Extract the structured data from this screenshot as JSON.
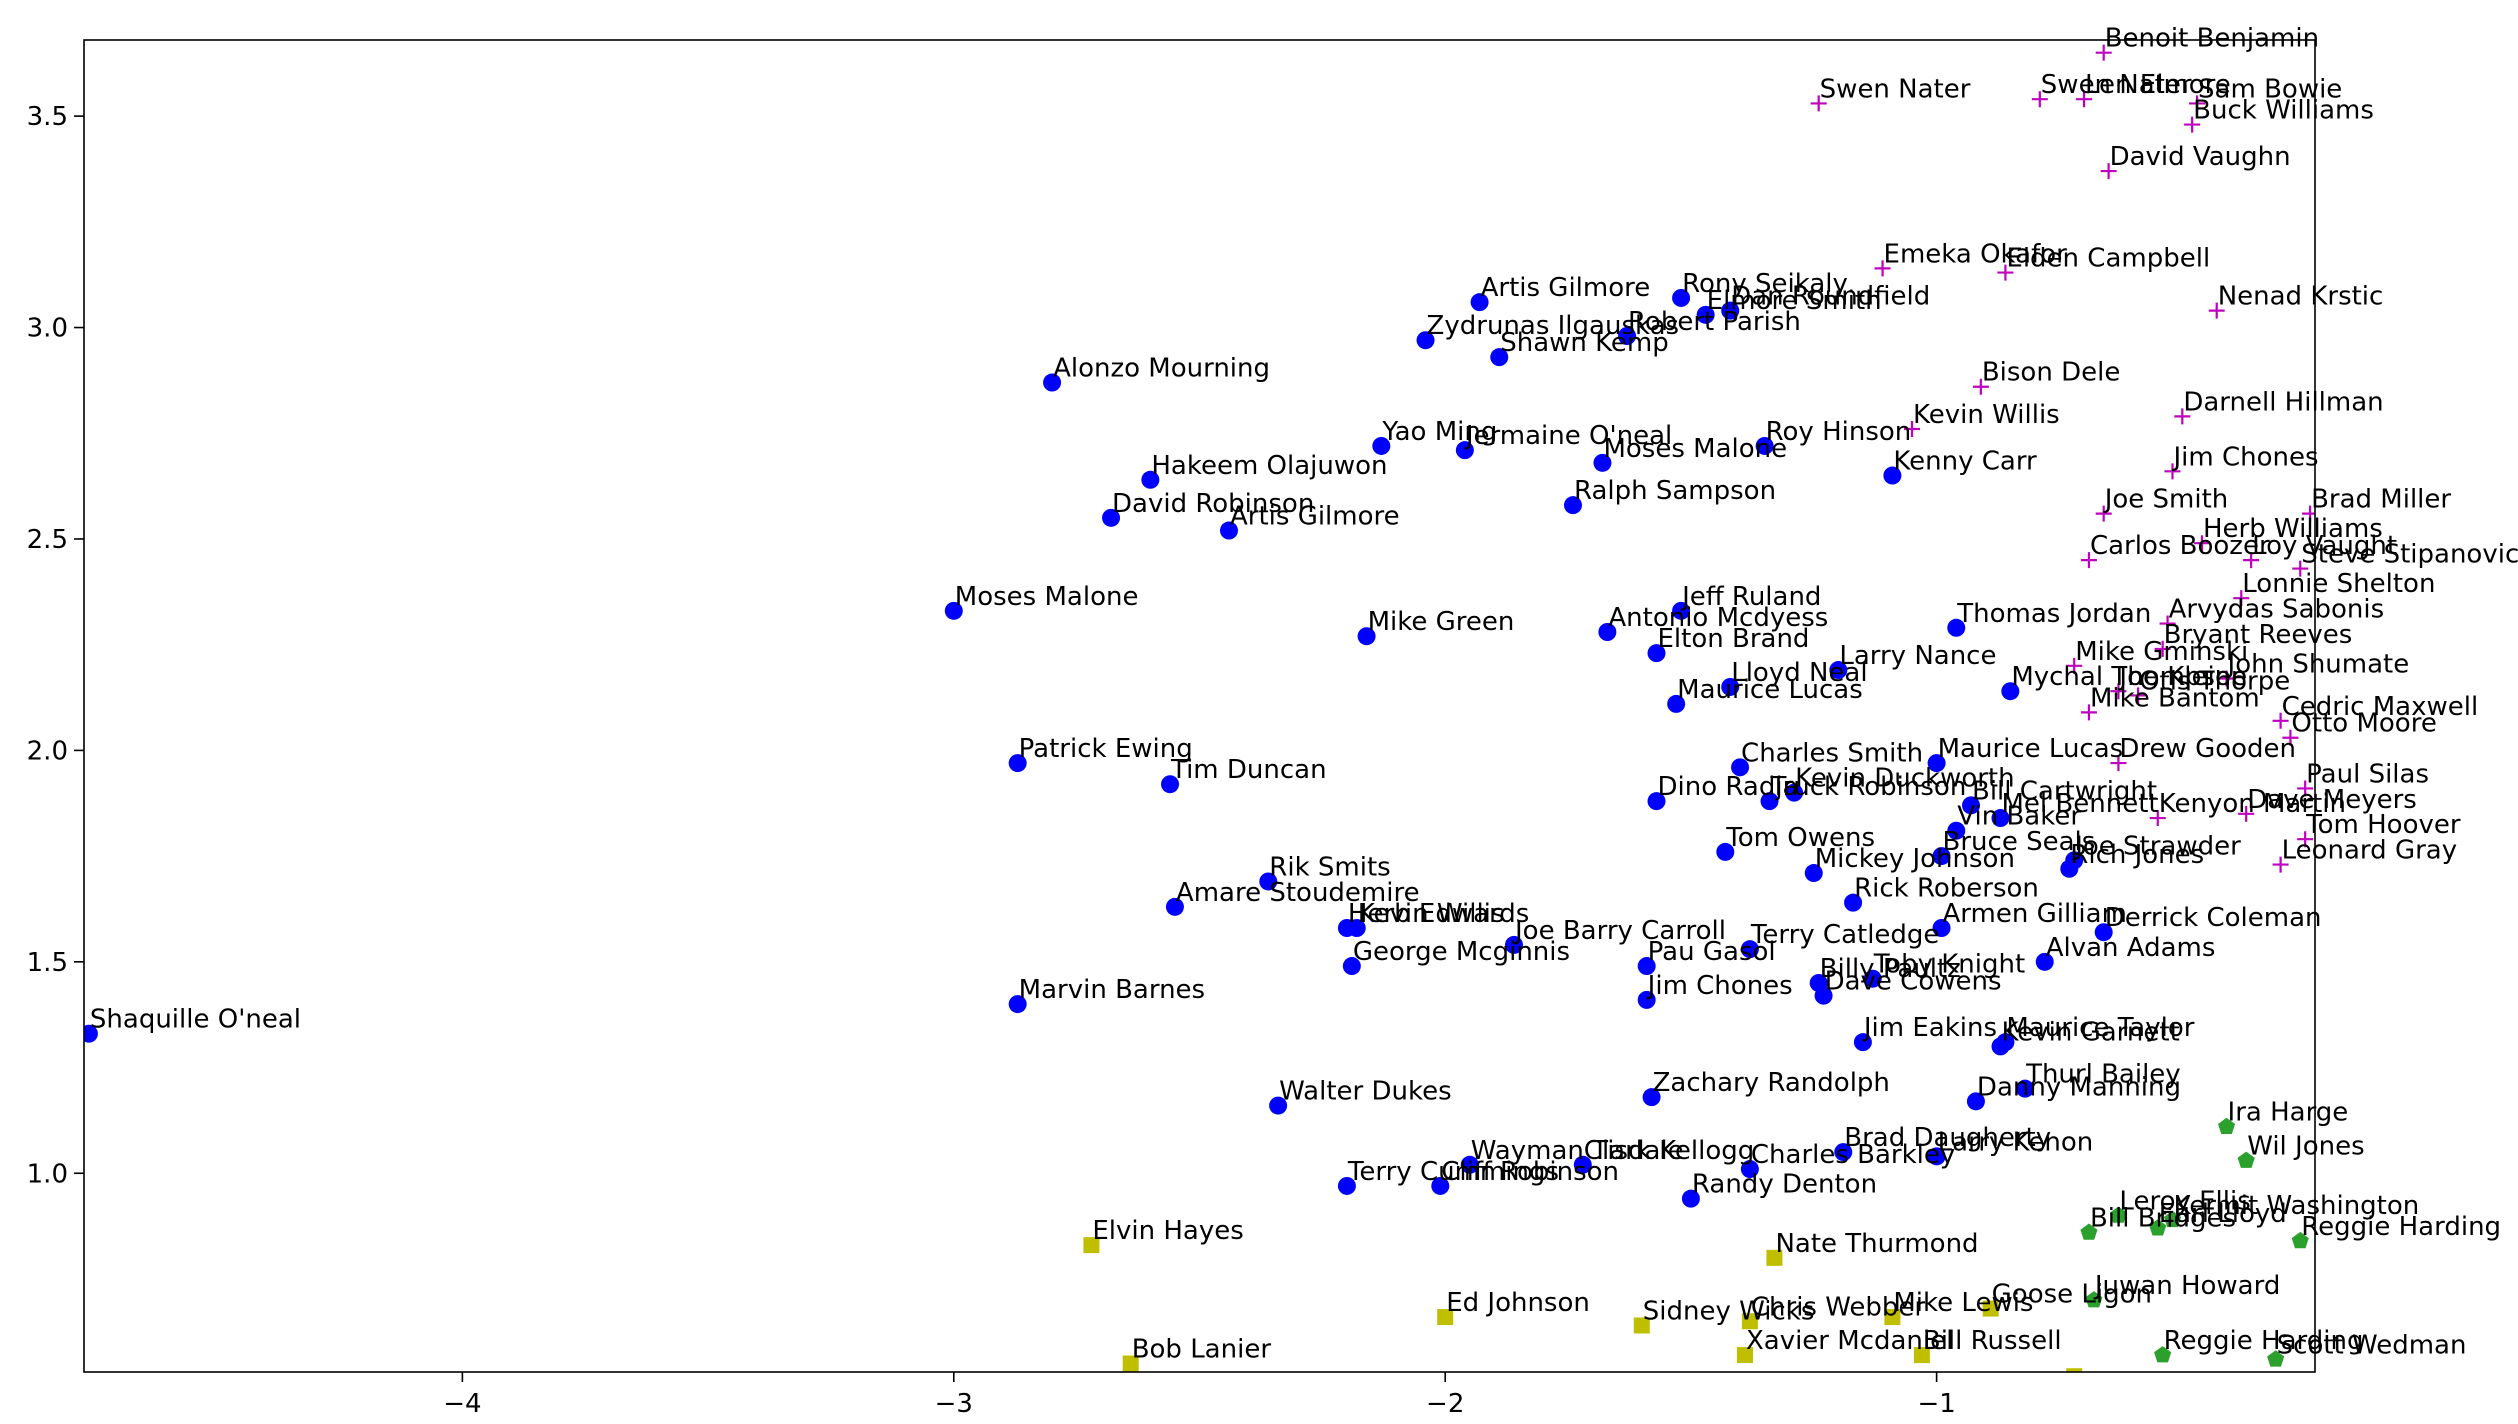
{
  "chart_data": {
    "type": "scatter",
    "title": "",
    "xlabel": "",
    "ylabel": "",
    "xlim": [
      -4.77,
      -0.23
    ],
    "ylim": [
      0.53,
      3.68
    ],
    "x_ticks": [
      {
        "value": -4,
        "label": "−4"
      },
      {
        "value": -3,
        "label": "−3"
      },
      {
        "value": -2,
        "label": "−2"
      },
      {
        "value": -1,
        "label": "−1"
      }
    ],
    "y_ticks": [
      {
        "value": 1.0,
        "label": "1.0"
      },
      {
        "value": 1.5,
        "label": "1.5"
      },
      {
        "value": 2.0,
        "label": "2.0"
      },
      {
        "value": 2.5,
        "label": "2.5"
      },
      {
        "value": 3.0,
        "label": "3.0"
      },
      {
        "value": 3.5,
        "label": "3.5"
      }
    ],
    "grid": false,
    "legend": "none",
    "series": [
      {
        "marker": "circle",
        "color": "#0000ff",
        "points": [
          {
            "x": -4.76,
            "y": 1.33,
            "label": "Shaquille O'neal"
          },
          {
            "x": -3.0,
            "y": 2.33,
            "label": "Moses Malone"
          },
          {
            "x": -2.8,
            "y": 2.87,
            "label": "Alonzo Mourning"
          },
          {
            "x": -2.87,
            "y": 1.97,
            "label": "Patrick Ewing"
          },
          {
            "x": -2.87,
            "y": 1.4,
            "label": "Marvin Barnes"
          },
          {
            "x": -2.68,
            "y": 2.55,
            "label": "David Robinson"
          },
          {
            "x": -2.6,
            "y": 2.64,
            "label": "Hakeem Olajuwon"
          },
          {
            "x": -2.44,
            "y": 2.52,
            "label": "Artis Gilmore"
          },
          {
            "x": -2.56,
            "y": 1.92,
            "label": "Tim Duncan"
          },
          {
            "x": -2.55,
            "y": 1.63,
            "label": "Amare Stoudemire"
          },
          {
            "x": -2.36,
            "y": 1.69,
            "label": "Rik Smits"
          },
          {
            "x": -2.34,
            "y": 1.16,
            "label": "Walter Dukes"
          },
          {
            "x": -2.16,
            "y": 2.27,
            "label": "Mike Green"
          },
          {
            "x": -2.13,
            "y": 2.72,
            "label": "Yao Ming"
          },
          {
            "x": -2.2,
            "y": 1.58,
            "label": "Herb Edwards"
          },
          {
            "x": -2.18,
            "y": 1.58,
            "label": "Kevin Willis"
          },
          {
            "x": -2.19,
            "y": 1.49,
            "label": "George Mcginnis"
          },
          {
            "x": -2.2,
            "y": 0.97,
            "label": "Terry Cummings"
          },
          {
            "x": -2.04,
            "y": 2.97,
            "label": "Zydrunas Ilgauskas"
          },
          {
            "x": -1.96,
            "y": 2.71,
            "label": "Jermaine O'neal"
          },
          {
            "x": -1.93,
            "y": 3.06,
            "label": "Artis Gilmore"
          },
          {
            "x": -1.89,
            "y": 2.93,
            "label": "Shawn Kemp"
          },
          {
            "x": -1.86,
            "y": 1.54,
            "label": "Joe Barry Carroll"
          },
          {
            "x": -1.95,
            "y": 1.02,
            "label": "Wayman Tisdale"
          },
          {
            "x": -2.01,
            "y": 0.97,
            "label": "Cliff Robinson"
          },
          {
            "x": -1.74,
            "y": 2.58,
            "label": "Ralph Sampson"
          },
          {
            "x": -1.68,
            "y": 2.68,
            "label": "Moses Malone"
          },
          {
            "x": -1.67,
            "y": 2.28,
            "label": "Antonio Mcdyess"
          },
          {
            "x": -1.72,
            "y": 1.02,
            "label": "Clark Kellogg"
          },
          {
            "x": -1.63,
            "y": 2.98,
            "label": "Robert Parish"
          },
          {
            "x": -1.57,
            "y": 2.23,
            "label": "Elton Brand"
          },
          {
            "x": -1.57,
            "y": 1.88,
            "label": "Dino Radja"
          },
          {
            "x": -1.59,
            "y": 1.49,
            "label": "Pau Gasol"
          },
          {
            "x": -1.59,
            "y": 1.41,
            "label": "Jim Chones"
          },
          {
            "x": -1.58,
            "y": 1.18,
            "label": "Zachary Randolph"
          },
          {
            "x": -1.52,
            "y": 3.07,
            "label": "Rony Seikaly"
          },
          {
            "x": -1.47,
            "y": 3.03,
            "label": "Elmore Smith"
          },
          {
            "x": -1.42,
            "y": 3.04,
            "label": "Dan Roundfield"
          },
          {
            "x": -1.52,
            "y": 2.33,
            "label": "Jeff Ruland"
          },
          {
            "x": -1.53,
            "y": 2.11,
            "label": "Maurice Lucas"
          },
          {
            "x": -1.42,
            "y": 2.15,
            "label": "Lloyd Neal"
          },
          {
            "x": -1.4,
            "y": 1.96,
            "label": "Charles Smith"
          },
          {
            "x": -1.43,
            "y": 1.76,
            "label": "Tom Owens"
          },
          {
            "x": -1.38,
            "y": 1.53,
            "label": "Terry Catledge"
          },
          {
            "x": -1.38,
            "y": 1.01,
            "label": "Charles Barkley"
          },
          {
            "x": -1.5,
            "y": 0.94,
            "label": "Randy Denton"
          },
          {
            "x": -1.35,
            "y": 2.72,
            "label": "Roy Hinson"
          },
          {
            "x": -1.34,
            "y": 1.88,
            "label": "Truck Robinson"
          },
          {
            "x": -1.29,
            "y": 1.9,
            "label": "Kevin Duckworth"
          },
          {
            "x": -1.25,
            "y": 1.71,
            "label": "Mickey Johnson"
          },
          {
            "x": -1.24,
            "y": 1.45,
            "label": "Billy Paultz"
          },
          {
            "x": -1.23,
            "y": 1.42,
            "label": "Dave Cowens"
          },
          {
            "x": -1.2,
            "y": 2.19,
            "label": "Larry Nance"
          },
          {
            "x": -1.17,
            "y": 1.64,
            "label": "Rick Roberson"
          },
          {
            "x": -1.13,
            "y": 1.46,
            "label": "Toby Knight"
          },
          {
            "x": -1.15,
            "y": 1.31,
            "label": "Jim Eakins"
          },
          {
            "x": -1.19,
            "y": 1.05,
            "label": "Brad Daugherty"
          },
          {
            "x": -1.09,
            "y": 2.65,
            "label": "Kenny Carr"
          },
          {
            "x": -1.0,
            "y": 1.97,
            "label": "Maurice Lucas"
          },
          {
            "x": -0.99,
            "y": 1.75,
            "label": "Bruce Seals"
          },
          {
            "x": -0.99,
            "y": 1.58,
            "label": "Armen Gilliam"
          },
          {
            "x": -1.0,
            "y": 1.04,
            "label": "Larry Kenon"
          },
          {
            "x": -0.96,
            "y": 2.29,
            "label": "Thomas Jordan"
          },
          {
            "x": -0.96,
            "y": 1.81,
            "label": "Vin Baker"
          },
          {
            "x": -0.93,
            "y": 1.87,
            "label": "Bill Cartwright"
          },
          {
            "x": -0.87,
            "y": 1.84,
            "label": "Mel Bennett"
          },
          {
            "x": -0.92,
            "y": 1.17,
            "label": "Danny Manning"
          },
          {
            "x": -0.85,
            "y": 2.14,
            "label": "Mychal Thompson"
          },
          {
            "x": -0.87,
            "y": 1.3,
            "label": "Kevin Garnett"
          },
          {
            "x": -0.86,
            "y": 1.31,
            "label": "Maurice Taylor"
          },
          {
            "x": -0.82,
            "y": 1.2,
            "label": "Thurl Bailey"
          },
          {
            "x": -0.78,
            "y": 1.5,
            "label": "Alvan Adams"
          },
          {
            "x": -0.73,
            "y": 1.72,
            "label": "Rich Jones"
          },
          {
            "x": -0.72,
            "y": 1.74,
            "label": "Joe Strawder"
          },
          {
            "x": -0.66,
            "y": 1.57,
            "label": "Derrick Coleman"
          }
        ]
      },
      {
        "marker": "plus",
        "color": "#bf00bf",
        "points": [
          {
            "x": -1.24,
            "y": 3.53,
            "label": "Swen Nater"
          },
          {
            "x": -0.79,
            "y": 3.54,
            "label": "Swen Nater"
          },
          {
            "x": -0.7,
            "y": 3.54,
            "label": "Len Elmore"
          },
          {
            "x": -0.66,
            "y": 3.65,
            "label": "Benoit Benjamin"
          },
          {
            "x": -0.47,
            "y": 3.53,
            "label": "Sam Bowie"
          },
          {
            "x": -0.48,
            "y": 3.48,
            "label": "Buck Williams"
          },
          {
            "x": -0.65,
            "y": 3.37,
            "label": "David Vaughn"
          },
          {
            "x": -1.11,
            "y": 3.14,
            "label": "Emeka Okafor"
          },
          {
            "x": -0.86,
            "y": 3.13,
            "label": "Elden Campbell"
          },
          {
            "x": -0.43,
            "y": 3.04,
            "label": "Nenad Krstic"
          },
          {
            "x": -0.91,
            "y": 2.86,
            "label": "Bison Dele"
          },
          {
            "x": -1.05,
            "y": 2.76,
            "label": "Kevin Willis"
          },
          {
            "x": -0.5,
            "y": 2.79,
            "label": "Darnell Hillman"
          },
          {
            "x": -0.52,
            "y": 2.66,
            "label": "Jim Chones"
          },
          {
            "x": -0.66,
            "y": 2.56,
            "label": "Joe Smith"
          },
          {
            "x": -0.69,
            "y": 2.45,
            "label": "Carlos Boozer"
          },
          {
            "x": -0.46,
            "y": 2.49,
            "label": "Herb Williams"
          },
          {
            "x": -0.24,
            "y": 2.56,
            "label": "Brad Miller"
          },
          {
            "x": -0.26,
            "y": 2.43,
            "label": "Steve Stipanovich"
          },
          {
            "x": -0.36,
            "y": 2.45,
            "label": "Loy Vaught"
          },
          {
            "x": -0.38,
            "y": 2.36,
            "label": "Lonnie Shelton"
          },
          {
            "x": -0.53,
            "y": 2.3,
            "label": "Arvydas Sabonis"
          },
          {
            "x": -0.54,
            "y": 2.24,
            "label": "Bryant Reeves"
          },
          {
            "x": -0.72,
            "y": 2.2,
            "label": "Mike Gminski"
          },
          {
            "x": -0.59,
            "y": 2.13,
            "label": "Otis Thorpe"
          },
          {
            "x": -0.63,
            "y": 2.14,
            "label": "Joe Kleine"
          },
          {
            "x": -0.69,
            "y": 2.09,
            "label": "Mike Bantom"
          },
          {
            "x": -0.41,
            "y": 2.17,
            "label": "John Shumate"
          },
          {
            "x": -0.3,
            "y": 2.07,
            "label": "Cedric Maxwell"
          },
          {
            "x": -0.28,
            "y": 2.03,
            "label": "Otto Moore"
          },
          {
            "x": -0.63,
            "y": 1.97,
            "label": "Drew Gooden"
          },
          {
            "x": -0.25,
            "y": 1.91,
            "label": "Paul Silas"
          },
          {
            "x": -0.55,
            "y": 1.84,
            "label": "Kenyon Martin"
          },
          {
            "x": -0.37,
            "y": 1.85,
            "label": "Dave Meyers"
          },
          {
            "x": -0.25,
            "y": 1.79,
            "label": "Tom Hoover"
          },
          {
            "x": -0.3,
            "y": 1.73,
            "label": "Leonard Gray"
          }
        ]
      },
      {
        "marker": "pentagon",
        "color": "#2ca02c",
        "points": [
          {
            "x": -0.41,
            "y": 1.11,
            "label": "Ira Harge"
          },
          {
            "x": -0.37,
            "y": 1.03,
            "label": "Wil Jones"
          },
          {
            "x": -0.63,
            "y": 0.9,
            "label": "Leroy Ellis"
          },
          {
            "x": -0.52,
            "y": 0.89,
            "label": "Kermit Washington"
          },
          {
            "x": -0.55,
            "y": 0.87,
            "label": "Earl Lloyd"
          },
          {
            "x": -0.69,
            "y": 0.86,
            "label": "Bill Bridges"
          },
          {
            "x": -0.26,
            "y": 0.84,
            "label": "Reggie Harding"
          },
          {
            "x": -0.68,
            "y": 0.7,
            "label": "Juwan Howard"
          },
          {
            "x": -0.54,
            "y": 0.57,
            "label": "Reggie Harding"
          },
          {
            "x": -0.31,
            "y": 0.56,
            "label": "Scott Wedman"
          }
        ]
      },
      {
        "marker": "square",
        "color": "#bfbf00",
        "points": [
          {
            "x": -2.72,
            "y": 0.83,
            "label": "Elvin Hayes"
          },
          {
            "x": -2.64,
            "y": 0.55,
            "label": "Bob Lanier"
          },
          {
            "x": -2.0,
            "y": 0.66,
            "label": "Ed Johnson"
          },
          {
            "x": -1.33,
            "y": 0.8,
            "label": "Nate Thurmond"
          },
          {
            "x": -1.6,
            "y": 0.64,
            "label": "Sidney Wicks"
          },
          {
            "x": -1.38,
            "y": 0.65,
            "label": "Chris Webber"
          },
          {
            "x": -1.09,
            "y": 0.66,
            "label": "Mike Lewis"
          },
          {
            "x": -0.89,
            "y": 0.68,
            "label": "Goose Ligon"
          },
          {
            "x": -1.39,
            "y": 0.57,
            "label": "Xavier Mcdaniel"
          },
          {
            "x": -1.03,
            "y": 0.57,
            "label": "Bill Russell"
          },
          {
            "x": -0.72,
            "y": 0.52,
            "label": ""
          }
        ]
      }
    ]
  }
}
